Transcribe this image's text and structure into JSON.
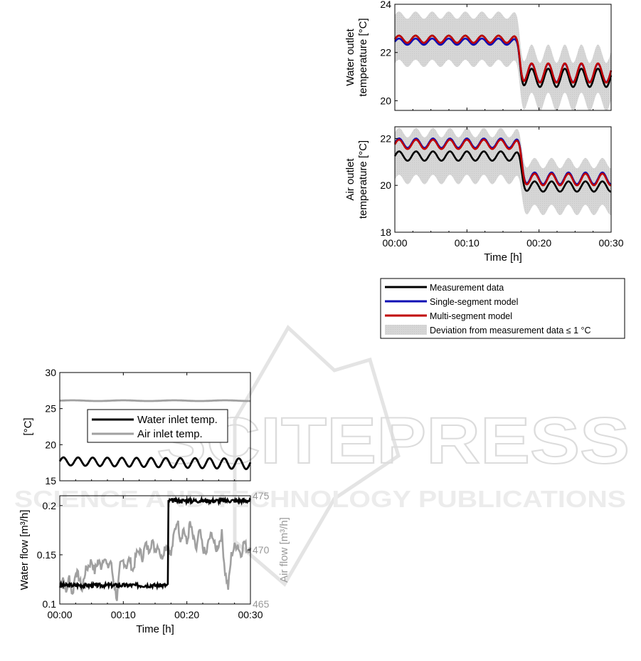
{
  "watermark": {
    "line1": "SCITEPRESS",
    "line2": "SCIENCE AND TECHNOLOGY PUBLICATIONS"
  },
  "chart_data": [
    {
      "id": "water_outlet",
      "type": "line",
      "ylabel_lines": [
        "Water outlet",
        "temperature [°C]"
      ],
      "xlabel": "",
      "x_ticks": [
        "",
        "",
        ""
      ],
      "ylim": [
        19.6,
        24
      ],
      "y_ticks": [
        20,
        22,
        24
      ],
      "xlim": [
        0,
        30
      ],
      "step_time": 17.3,
      "series": [
        {
          "name": "Measurement data",
          "color": "#000000",
          "before": 22.55,
          "after": 20.95,
          "amp_before": 0.15,
          "amp_after": 0.38,
          "period": 2.3
        },
        {
          "name": "Single-segment model",
          "color": "#1010b4",
          "before": 22.45,
          "after": 21.15,
          "amp_before": 0.13,
          "amp_after": 0.38,
          "period": 2.3
        },
        {
          "name": "Multi-segment model",
          "color": "#c00000",
          "before": 22.55,
          "after": 21.15,
          "amp_before": 0.15,
          "amp_after": 0.4,
          "period": 2.3
        }
      ],
      "band": {
        "name": "Deviation from measurement data ≤ 1 °C",
        "width": 1.0,
        "color": "#d3d3d3"
      }
    },
    {
      "id": "air_outlet",
      "type": "line",
      "ylabel_lines": [
        "Air outlet",
        "temperature [°C]"
      ],
      "xlabel": "Time [h]",
      "x_ticks": [
        "00:00",
        "00:10",
        "00:20",
        "00:30"
      ],
      "ylim": [
        18,
        22.5
      ],
      "y_ticks": [
        18,
        20,
        22
      ],
      "xlim": [
        0,
        30
      ],
      "step_time": 17.6,
      "series": [
        {
          "name": "Measurement data",
          "color": "#000000",
          "before": 21.25,
          "after": 19.95,
          "amp_before": 0.2,
          "amp_after": 0.22,
          "period": 2.35
        },
        {
          "name": "Single-segment model",
          "color": "#1010b4",
          "before": 21.8,
          "after": 20.3,
          "amp_before": 0.2,
          "amp_after": 0.25,
          "period": 2.35
        },
        {
          "name": "Multi-segment model",
          "color": "#c00000",
          "before": 21.75,
          "after": 20.25,
          "amp_before": 0.2,
          "amp_after": 0.25,
          "period": 2.35
        }
      ],
      "band": {
        "name": "Deviation from measurement data ≤ 1 °C",
        "width": 1.0,
        "color": "#d3d3d3"
      }
    },
    {
      "id": "inlet_temps",
      "type": "line",
      "ylabel": "[°C]",
      "xlabel": "",
      "ylim": [
        15,
        30
      ],
      "y_ticks": [
        15,
        20,
        25,
        30
      ],
      "xlim": [
        0,
        30
      ],
      "series": [
        {
          "name": "Water inlet temp.",
          "color": "#000000",
          "mean": 17.7,
          "amp": 0.55,
          "period": 2.3
        },
        {
          "name": "Air inlet temp.",
          "color": "#a0a0a0",
          "mean": 26.1,
          "amp": 0.05,
          "period": 8
        }
      ]
    },
    {
      "id": "flows",
      "type": "line",
      "ylabel": "Water flow [m³/h]",
      "ylabel_right": "Air flow [m³/h]",
      "xlabel": "Time [h]",
      "x_ticks": [
        "00:00",
        "00:10",
        "00:20",
        "00:30"
      ],
      "ylim": [
        0.1,
        0.21
      ],
      "y_ticks": [
        0.1,
        0.15,
        0.2
      ],
      "y_tick_labels": [
        "0.1",
        "0.15",
        "0.2"
      ],
      "ylim_right": [
        465,
        475
      ],
      "y_ticks_right": [
        465,
        470,
        475
      ],
      "xlim": [
        0,
        30
      ],
      "series": [
        {
          "name": "Water flow",
          "color": "#000000",
          "axis": "left",
          "before": 0.119,
          "after": 0.205,
          "step_time": 17.1
        },
        {
          "name": "Air flow",
          "color": "#a0a0a0",
          "axis": "right",
          "points": [
            [
              0,
              466.5
            ],
            [
              0.5,
              467.5
            ],
            [
              1,
              466
            ],
            [
              1.5,
              467.5
            ],
            [
              2,
              465.8
            ],
            [
              2.5,
              468
            ],
            [
              3,
              467.5
            ],
            [
              3.5,
              466.3
            ],
            [
              4,
              468
            ],
            [
              4.5,
              468.5
            ],
            [
              5,
              469
            ],
            [
              5.5,
              468
            ],
            [
              6,
              469
            ],
            [
              6.5,
              468.5
            ],
            [
              7,
              469.5
            ],
            [
              7.5,
              468.3
            ],
            [
              8,
              469
            ],
            [
              8.5,
              467
            ],
            [
              9,
              465.5
            ],
            [
              9.5,
              468.5
            ],
            [
              10,
              469
            ],
            [
              10.5,
              468.5
            ],
            [
              11,
              469.2
            ],
            [
              11.5,
              468
            ],
            [
              12,
              469.5
            ],
            [
              12.5,
              470
            ],
            [
              13,
              469.3
            ],
            [
              13.5,
              470.5
            ],
            [
              14,
              470
            ],
            [
              14.5,
              470.8
            ],
            [
              15,
              470
            ],
            [
              15.5,
              470.5
            ],
            [
              16,
              469.2
            ],
            [
              16.5,
              470.2
            ],
            [
              17,
              470.5
            ],
            [
              17.5,
              469.5
            ],
            [
              18,
              471.5
            ],
            [
              18.5,
              472.8
            ],
            [
              19,
              471
            ],
            [
              19.5,
              472
            ],
            [
              20,
              470.5
            ],
            [
              20.5,
              472.5
            ],
            [
              21,
              471
            ],
            [
              21.5,
              470
            ],
            [
              22,
              471.8
            ],
            [
              22.5,
              470.2
            ],
            [
              23,
              469.5
            ],
            [
              23.5,
              471
            ],
            [
              24,
              471.5
            ],
            [
              24.5,
              470
            ],
            [
              25,
              470.5
            ],
            [
              25.5,
              471.5
            ],
            [
              26,
              468
            ],
            [
              26.5,
              466.5
            ],
            [
              27,
              469.5
            ],
            [
              27.5,
              470.3
            ],
            [
              28,
              470.5
            ],
            [
              28.5,
              469.5
            ],
            [
              29,
              470.8
            ],
            [
              29.5,
              470
            ],
            [
              30,
              470.2
            ]
          ]
        }
      ]
    }
  ],
  "legend_top": {
    "items": [
      {
        "label": "Measurement data",
        "color": "#000000",
        "kind": "line"
      },
      {
        "label": "Single-segment model",
        "color": "#1010b4",
        "kind": "line"
      },
      {
        "label": "Multi-segment model",
        "color": "#c00000",
        "kind": "line"
      },
      {
        "label": "Deviation from measurement data ≤ 1 °C",
        "color": "#d3d3d3",
        "kind": "band"
      }
    ]
  },
  "legend_bottom": {
    "items": [
      {
        "label": "Water inlet temp.",
        "color": "#000000"
      },
      {
        "label": "Air inlet temp.",
        "color": "#a0a0a0"
      }
    ]
  }
}
